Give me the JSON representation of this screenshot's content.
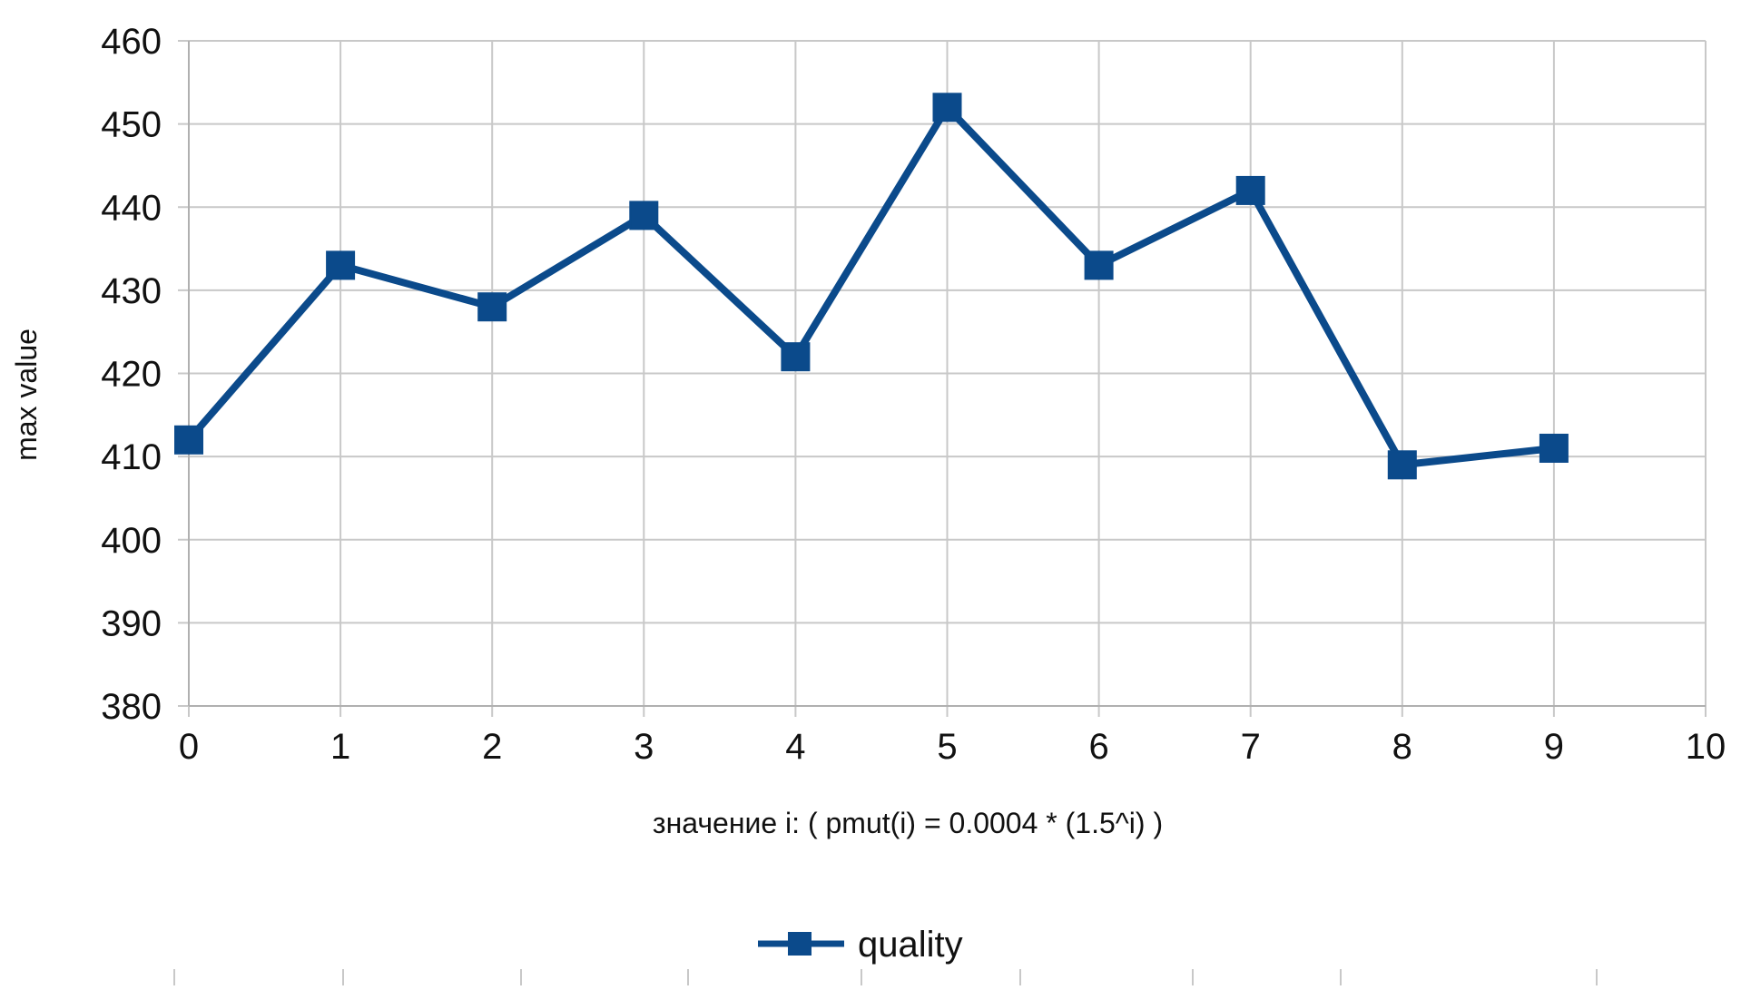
{
  "chart_data": {
    "type": "line",
    "title": "",
    "xlabel": "значение i: ( pmut(i) = 0.0004 * (1.5^i) )",
    "ylabel": "max value",
    "xlim": [
      0,
      10
    ],
    "ylim": [
      380,
      460
    ],
    "xticks": [
      0,
      1,
      2,
      3,
      4,
      5,
      6,
      7,
      8,
      9,
      10
    ],
    "yticks": [
      380,
      390,
      400,
      410,
      420,
      430,
      440,
      450,
      460
    ],
    "grid": true,
    "legend_position": "bottom",
    "series": [
      {
        "name": "quality",
        "color": "#0b4a8b",
        "marker": "square",
        "x": [
          0,
          1,
          2,
          3,
          4,
          5,
          6,
          7,
          8,
          9
        ],
        "values": [
          412,
          433,
          428,
          439,
          422,
          452,
          433,
          442,
          409,
          411
        ]
      }
    ]
  }
}
